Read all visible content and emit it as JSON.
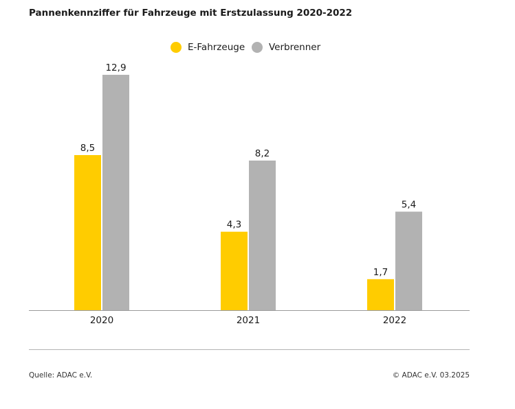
{
  "title": "Pannenkennziffer für Fahrzeuge mit Erstzulassung 2020-2022",
  "legend": [
    {
      "label": "E-Fahrzeuge",
      "color": "#FFCC00"
    },
    {
      "label": "Verbrenner",
      "color": "#B2B2B2"
    }
  ],
  "footer": {
    "source": "Quelle: ADAC e.V.",
    "copyright": "© ADAC e.V. 03.2025"
  },
  "chart_data": {
    "type": "bar",
    "title": "Pannenkennziffer für Fahrzeuge mit Erstzulassung 2020-2022",
    "categories": [
      "2020",
      "2021",
      "2022"
    ],
    "series": [
      {
        "name": "E-Fahrzeuge",
        "values": [
          8.5,
          4.3,
          1.7
        ],
        "labels": [
          "8,5",
          "4,3",
          "1,7"
        ],
        "color": "#FFCC00"
      },
      {
        "name": "Verbrenner",
        "values": [
          12.9,
          8.2,
          5.4
        ],
        "labels": [
          "12,9",
          "8,2",
          "5,4"
        ],
        "color": "#B2B2B2"
      }
    ],
    "ylim": [
      0,
      12.9
    ],
    "grid": false,
    "legend_position": "top-center",
    "xlabel": "",
    "ylabel": ""
  }
}
